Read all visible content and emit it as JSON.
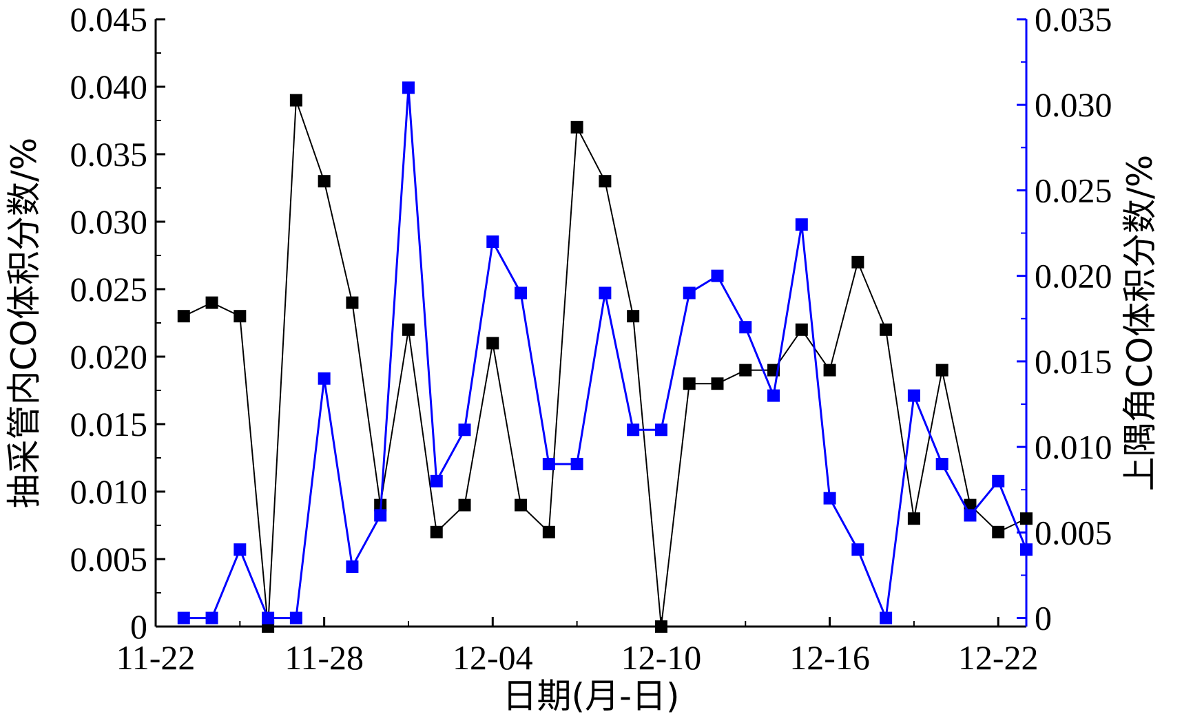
{
  "colors": {
    "left_series": "#000000",
    "right_series": "#0000ff",
    "left_axis": "#000000",
    "right_axis": "#0000ff"
  },
  "chart_data": {
    "type": "line",
    "x_axis": {
      "label": "日期(月-日)",
      "ticks": [
        "11-22",
        "11-28",
        "12-04",
        "12-10",
        "12-16",
        "12-22"
      ],
      "range": [
        "11-22",
        "12-23"
      ]
    },
    "y_left": {
      "label": "抽采管内CO体积分数/%",
      "ticks": [
        "0",
        "0.005",
        "0.010",
        "0.015",
        "0.020",
        "0.025",
        "0.030",
        "0.035",
        "0.040",
        "0.045"
      ],
      "ylim": [
        0,
        0.045
      ]
    },
    "y_right": {
      "label": "上隅角CO体积分数/%",
      "ticks": [
        "0",
        "0.005",
        "0.010",
        "0.015",
        "0.020",
        "0.025",
        "0.030",
        "0.035"
      ],
      "ylim": [
        -0.0005,
        0.035
      ]
    },
    "x": [
      "11-23",
      "11-24",
      "11-25",
      "11-26",
      "11-27",
      "11-28",
      "11-29",
      "11-30",
      "12-01",
      "12-02",
      "12-03",
      "12-04",
      "12-05",
      "12-06",
      "12-07",
      "12-08",
      "12-09",
      "12-10",
      "12-11",
      "12-12",
      "12-13",
      "12-14",
      "12-15",
      "12-16",
      "12-17",
      "12-18",
      "12-19",
      "12-20",
      "12-21",
      "12-22",
      "12-23"
    ],
    "series": [
      {
        "axis": "left",
        "color": "#000000",
        "values": [
          0.023,
          0.024,
          0.023,
          0,
          0.039,
          0.033,
          0.024,
          0.009,
          0.022,
          0.007,
          0.009,
          0.021,
          0.009,
          0.007,
          0.037,
          0.033,
          0.023,
          0,
          0.018,
          0.018,
          0.019,
          0.019,
          0.022,
          0.019,
          0.027,
          0.022,
          0.008,
          0.019,
          0.009,
          0.007,
          0.008
        ]
      },
      {
        "axis": "right",
        "color": "#0000ff",
        "values": [
          0,
          0,
          0.004,
          0,
          0,
          0.014,
          0.003,
          0.006,
          0.031,
          0.008,
          0.011,
          0.022,
          0.019,
          0.009,
          0.009,
          0.019,
          0.011,
          0.011,
          0.019,
          0.02,
          0.017,
          0.013,
          0.023,
          0.007,
          0.004,
          0,
          0.013,
          0.009,
          0.006,
          0.008,
          0.004
        ]
      }
    ]
  }
}
